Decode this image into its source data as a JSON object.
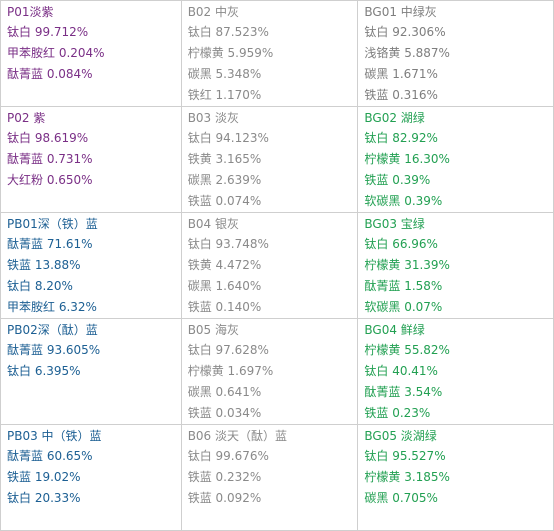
{
  "rows": [
    [
      {
        "title": "P01淡紫",
        "items": [
          "钛白 99.712%",
          "甲苯胺红 0.204%",
          "酞菁蓝 0.084%"
        ]
      },
      {
        "title": "B02 中灰",
        "items": [
          "钛白 87.523%",
          "柠檬黄 5.959%",
          "碳黑 5.348%",
          "铁红 1.170%"
        ]
      },
      {
        "title": "BG01 中绿灰",
        "items": [
          "钛白 92.306%",
          "浅铬黄 5.887%",
          "碳黑 1.671%",
          "铁蓝 0.316%"
        ]
      }
    ],
    [
      {
        "title": "P02 紫",
        "items": [
          "钛白 98.619%",
          "酞菁蓝 0.731%",
          "大红粉 0.650%"
        ]
      },
      {
        "title": "B03 淡灰",
        "items": [
          "钛白 94.123%",
          "铁黄 3.165%",
          "碳黑 2.639%",
          "铁蓝 0.074%"
        ]
      },
      {
        "title": "BG02 湖绿",
        "items": [
          "钛白 82.92%",
          "柠檬黄 16.30%",
          "铁蓝 0.39%",
          "软碳黑 0.39%"
        ]
      }
    ],
    [
      {
        "title": "PB01深（铁）蓝",
        "items": [
          "酞菁蓝 71.61%",
          "铁蓝 13.88%",
          "钛白 8.20%",
          "甲苯胺红 6.32%"
        ]
      },
      {
        "title": "B04 银灰",
        "items": [
          "钛白 93.748%",
          "铁黄 4.472%",
          "碳黑 1.640%",
          "铁蓝 0.140%"
        ]
      },
      {
        "title": "BG03 宝绿",
        "items": [
          "钛白 66.96%",
          "柠檬黄 31.39%",
          "酞菁蓝 1.58%",
          "软碳黑 0.07%"
        ]
      }
    ],
    [
      {
        "title": "PB02深（酞）蓝",
        "items": [
          "酞菁蓝 93.605%",
          "钛白 6.395%"
        ]
      },
      {
        "title": "B05 海灰",
        "items": [
          "钛白 97.628%",
          "柠檬黄 1.697%",
          "碳黑 0.641%",
          "铁蓝 0.034%"
        ]
      },
      {
        "title": "BG04 鲜绿",
        "items": [
          "柠檬黄 55.82%",
          "钛白 40.41%",
          "酞菁蓝 3.54%",
          "铁蓝 0.23%"
        ]
      }
    ],
    [
      {
        "title": "PB03 中（铁）蓝",
        "items": [
          "酞菁蓝 60.65%",
          "铁蓝 19.02%",
          "钛白 20.33%"
        ]
      },
      {
        "title": "B06 淡天（酞）蓝",
        "items": [
          "钛白 99.676%",
          "铁蓝 0.232%",
          "铁蓝 0.092%"
        ]
      },
      {
        "title": "BG05 淡湖绿",
        "items": [
          "钛白 95.527%",
          "柠檬黄 3.185%",
          "碳黑 0.705%"
        ]
      }
    ]
  ],
  "colors": {
    "purple": "#7a2f86",
    "blue": "#1c5f93",
    "gray": "#8a8a8a",
    "green": "#22a052",
    "border": "#cfcfcf"
  }
}
